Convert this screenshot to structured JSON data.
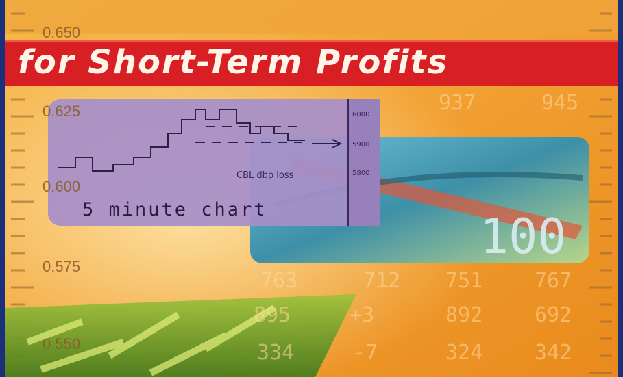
{
  "banner": {
    "title": "for Short-Term Profits"
  },
  "scale_labels": [
    "0.650",
    "0.625",
    "0.600",
    "0.575",
    "0.550"
  ],
  "inset_chart": {
    "caption": "5 minute chart",
    "annotation": "CBL dbp loss",
    "axis_labels": [
      "6000",
      "5900",
      "5800"
    ]
  },
  "background_numbers": [
    "937",
    "945",
    "763",
    "712",
    "751",
    "767",
    "895",
    "+3",
    "892",
    "692",
    "334",
    "-7",
    "324",
    "342"
  ]
}
